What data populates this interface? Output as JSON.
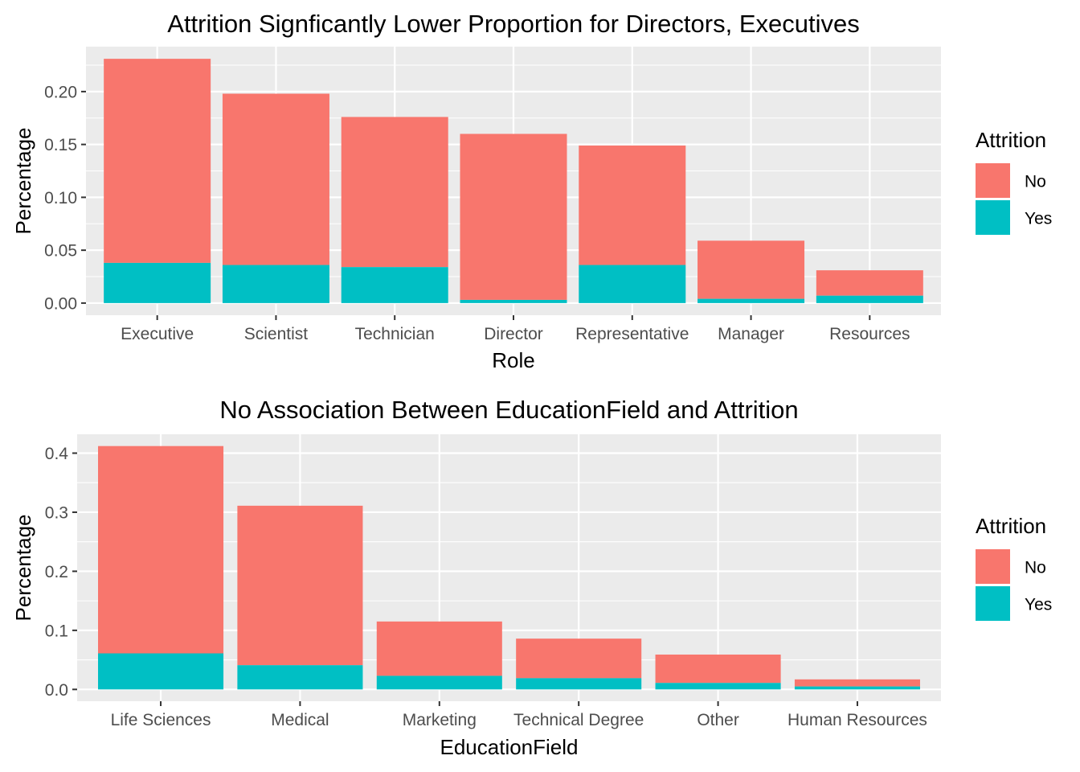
{
  "chart_data": [
    {
      "type": "bar",
      "stacked": true,
      "title": "Attrition Signficantly Lower Proportion for Directors, Executives",
      "xlabel": "Role",
      "ylabel": "Percentage",
      "categories": [
        "Executive",
        "Scientist",
        "Technician",
        "Director",
        "Representative",
        "Manager",
        "Resources"
      ],
      "series": [
        {
          "name": "No",
          "color": "#F8766D",
          "values": [
            0.193,
            0.162,
            0.142,
            0.157,
            0.113,
            0.055,
            0.024
          ]
        },
        {
          "name": "Yes",
          "color": "#00BFC4",
          "values": [
            0.038,
            0.036,
            0.034,
            0.003,
            0.036,
            0.004,
            0.007
          ]
        }
      ],
      "yticks": [
        0.0,
        0.05,
        0.1,
        0.15,
        0.2
      ],
      "ytick_labels": [
        "0.00",
        "0.05",
        "0.10",
        "0.15",
        "0.20"
      ],
      "ylim": [
        -0.0115,
        0.2425
      ],
      "grid": true,
      "legend": {
        "title": "Attrition",
        "position": "right",
        "entries": [
          "No",
          "Yes"
        ]
      }
    },
    {
      "type": "bar",
      "stacked": true,
      "title": "No Association Between EducationField and Attrition",
      "xlabel": "EducationField",
      "ylabel": "Percentage",
      "categories": [
        "Life Sciences",
        "Medical",
        "Marketing",
        "Technical Degree",
        "Other",
        "Human Resources"
      ],
      "series": [
        {
          "name": "No",
          "color": "#F8766D",
          "values": [
            0.351,
            0.27,
            0.092,
            0.067,
            0.048,
            0.012
          ]
        },
        {
          "name": "Yes",
          "color": "#00BFC4",
          "values": [
            0.061,
            0.041,
            0.023,
            0.019,
            0.011,
            0.005
          ]
        }
      ],
      "yticks": [
        0.0,
        0.1,
        0.2,
        0.3,
        0.4
      ],
      "ytick_labels": [
        "0.0",
        "0.1",
        "0.2",
        "0.3",
        "0.4"
      ],
      "ylim": [
        -0.02,
        0.432
      ],
      "grid": true,
      "legend": {
        "title": "Attrition",
        "position": "right",
        "entries": [
          "No",
          "Yes"
        ]
      }
    }
  ]
}
